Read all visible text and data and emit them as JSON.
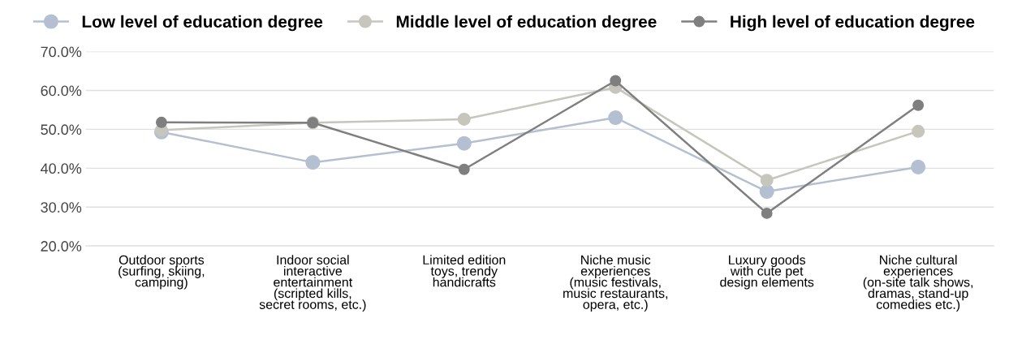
{
  "chart_data": {
    "type": "line",
    "categories": [
      "Outdoor sports\n(surfing, skiing,\ncamping)",
      "Indoor social\ninteractive\nentertainment\n(scripted kills,\nsecret rooms, etc.)",
      "Limited edition\ntoys, trendy\nhandicrafts",
      "Niche music\nexperiences\n(music festivals,\nmusic restaurants,\nopera, etc.)",
      "Luxury goods\nwith cute pet\ndesign elements",
      "Niche cultural\nexperiences\n(on-site talk shows,\ndramas, stand-up\ncomedies etc.)"
    ],
    "series": [
      {
        "name": "Low level of education degree",
        "color": "#b4c0d2",
        "values": [
          49.3,
          41.5,
          46.4,
          53.0,
          34.0,
          40.3
        ]
      },
      {
        "name": "Middle level of education degree",
        "color": "#c6c6bd",
        "values": [
          49.8,
          51.7,
          52.6,
          60.8,
          36.9,
          49.5
        ]
      },
      {
        "name": "High level of education degree",
        "color": "#7f7f7f",
        "values": [
          51.8,
          51.7,
          39.7,
          62.5,
          28.4,
          56.2
        ]
      }
    ],
    "ylim": [
      20,
      70
    ],
    "yticks": [
      {
        "value": 20,
        "label": "20.0%"
      },
      {
        "value": 30,
        "label": "30.0%"
      },
      {
        "value": 40,
        "label": "40.0%"
      },
      {
        "value": 50,
        "label": "50.0%"
      },
      {
        "value": 60,
        "label": "60.0%"
      },
      {
        "value": 70,
        "label": "70.0%"
      }
    ],
    "grid": "y",
    "legend": "top",
    "marker": "circle",
    "line_style": "solid"
  }
}
